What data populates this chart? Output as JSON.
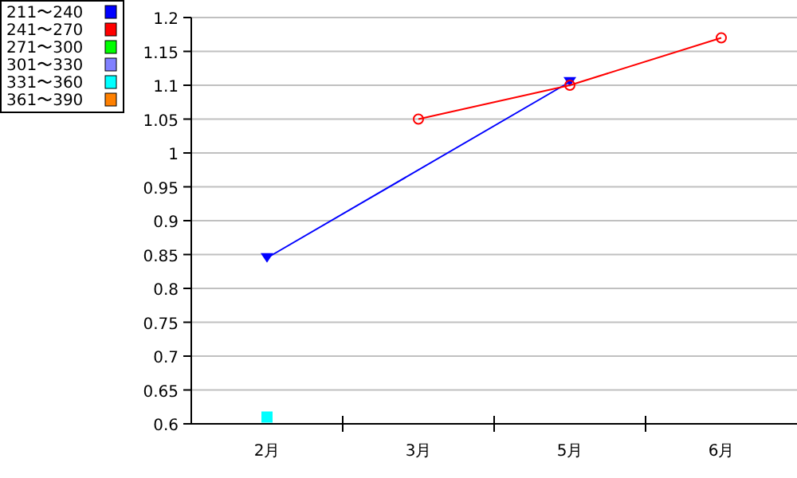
{
  "chart_data": {
    "type": "line",
    "categories": [
      "2月",
      "3月",
      "5月",
      "6月"
    ],
    "ylim": [
      0.6,
      1.2
    ],
    "yticks": [
      0.6,
      0.65,
      0.7,
      0.75,
      0.8,
      0.85,
      0.9,
      0.95,
      1,
      1.05,
      1.1,
      1.15,
      1.2
    ],
    "grid": "y",
    "legend": "top left",
    "series": [
      {
        "name": "211〜240",
        "color": "#0000ff",
        "values": [
          0.845,
          null,
          1.105,
          null
        ],
        "marker": "triangle"
      },
      {
        "name": "241〜270",
        "color": "#ff0000",
        "values": [
          null,
          1.05,
          1.1,
          1.17
        ],
        "marker": "circle"
      },
      {
        "name": "271〜300",
        "color": "#00ff00",
        "values": [
          null,
          null,
          null,
          null
        ],
        "marker": "none"
      },
      {
        "name": "301〜330",
        "color": "#8080ff",
        "values": [
          null,
          null,
          null,
          null
        ],
        "marker": "none"
      },
      {
        "name": "331〜360",
        "color": "#00ffff",
        "values": [
          0.61,
          null,
          null,
          null
        ],
        "marker": "square"
      },
      {
        "name": "361〜390",
        "color": "#ff8000",
        "values": [
          null,
          null,
          null,
          null
        ],
        "marker": "none"
      }
    ]
  }
}
